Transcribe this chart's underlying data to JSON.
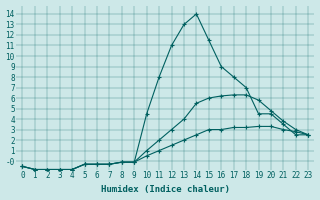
{
  "xlabel": "Humidex (Indice chaleur)",
  "ylabel": "",
  "bg_color": "#cde8e8",
  "line_color": "#006060",
  "xlim": [
    -0.5,
    23.5
  ],
  "ylim": [
    -0.8,
    14.8
  ],
  "xticks": [
    0,
    1,
    2,
    3,
    4,
    5,
    6,
    7,
    8,
    9,
    10,
    11,
    12,
    13,
    14,
    15,
    16,
    17,
    18,
    19,
    20,
    21,
    22,
    23
  ],
  "yticks": [
    0,
    1,
    2,
    3,
    4,
    5,
    6,
    7,
    8,
    9,
    10,
    11,
    12,
    13,
    14
  ],
  "yticklabels": [
    "-0",
    "1",
    "2",
    "3",
    "4",
    "5",
    "6",
    "7",
    "8",
    "9",
    "10",
    "11",
    "12",
    "13",
    "14"
  ],
  "series": [
    {
      "x": [
        0,
        1,
        2,
        3,
        4,
        5,
        6,
        7,
        8,
        9,
        10,
        11,
        12,
        13,
        14,
        15,
        16,
        17,
        18,
        19,
        20,
        21,
        22,
        23
      ],
      "y": [
        -0.5,
        -0.8,
        -0.8,
        -0.8,
        -0.8,
        -0.3,
        -0.3,
        -0.3,
        -0.1,
        -0.1,
        4.5,
        8,
        11,
        13,
        14,
        11.5,
        9,
        8,
        7,
        4.5,
        4.5,
        3.5,
        2.5,
        2.5
      ]
    },
    {
      "x": [
        0,
        1,
        2,
        3,
        4,
        5,
        6,
        7,
        8,
        9,
        10,
        11,
        12,
        13,
        14,
        15,
        16,
        17,
        18,
        19,
        20,
        21,
        22,
        23
      ],
      "y": [
        -0.5,
        -0.8,
        -0.8,
        -0.8,
        -0.8,
        -0.3,
        -0.3,
        -0.3,
        -0.1,
        -0.1,
        1.0,
        2.0,
        3.0,
        4.0,
        5.5,
        6.0,
        6.2,
        6.3,
        6.3,
        5.8,
        4.8,
        3.8,
        3.0,
        2.5
      ]
    },
    {
      "x": [
        0,
        1,
        2,
        3,
        4,
        5,
        6,
        7,
        8,
        9,
        10,
        11,
        12,
        13,
        14,
        15,
        16,
        17,
        18,
        19,
        20,
        21,
        22,
        23
      ],
      "y": [
        -0.5,
        -0.8,
        -0.8,
        -0.8,
        -0.8,
        -0.3,
        -0.3,
        -0.3,
        -0.1,
        -0.1,
        0.5,
        1.0,
        1.5,
        2.0,
        2.5,
        3.0,
        3.0,
        3.2,
        3.2,
        3.3,
        3.3,
        3.0,
        2.8,
        2.5
      ]
    }
  ]
}
